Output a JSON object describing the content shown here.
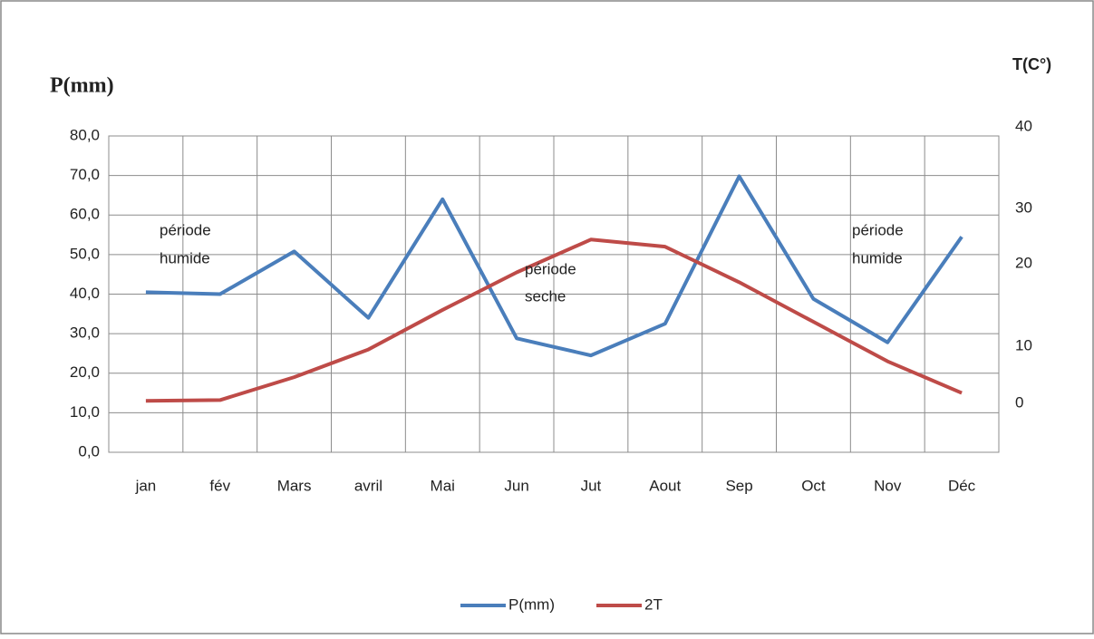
{
  "chart_data": {
    "type": "line",
    "title": "P(mm)",
    "y2_title": "T(C°)",
    "y2_labels": [
      "40",
      "30",
      "20",
      "10",
      "0"
    ],
    "categories": [
      "jan",
      "fév",
      "Mars",
      "avril",
      "Mai",
      "Jun",
      "Jut",
      "Aout",
      "Sep",
      "Oct",
      "Nov",
      "Déc"
    ],
    "series": [
      {
        "name": "P(mm)",
        "color": "#4a7ebb",
        "values": [
          40.5,
          40.0,
          50.8,
          34.0,
          64.0,
          28.8,
          24.5,
          32.5,
          69.8,
          38.8,
          27.8,
          54.5
        ]
      },
      {
        "name": "2T",
        "color": "#be4b48",
        "values": [
          13.0,
          13.2,
          19.0,
          26.0,
          36.0,
          45.5,
          53.8,
          52.0,
          43.0,
          33.0,
          23.0,
          15.0
        ]
      }
    ],
    "ylim": [
      0,
      80
    ],
    "yticks": [
      {
        "value": 0,
        "label": "0,0"
      },
      {
        "value": 10,
        "label": "10,0"
      },
      {
        "value": 20,
        "label": "20,0"
      },
      {
        "value": 30,
        "label": "30,0"
      },
      {
        "value": 40,
        "label": "40,0"
      },
      {
        "value": 50,
        "label": "50,0"
      },
      {
        "value": 60,
        "label": "60,0"
      },
      {
        "value": 70,
        "label": "70,0"
      },
      {
        "value": 80,
        "label": "80,0"
      }
    ],
    "grid": true,
    "annotations": [
      {
        "lines": [
          "période",
          "humide"
        ]
      },
      {
        "lines": [
          "période",
          "seche"
        ]
      },
      {
        "lines": [
          "période",
          "humide"
        ]
      }
    ]
  }
}
